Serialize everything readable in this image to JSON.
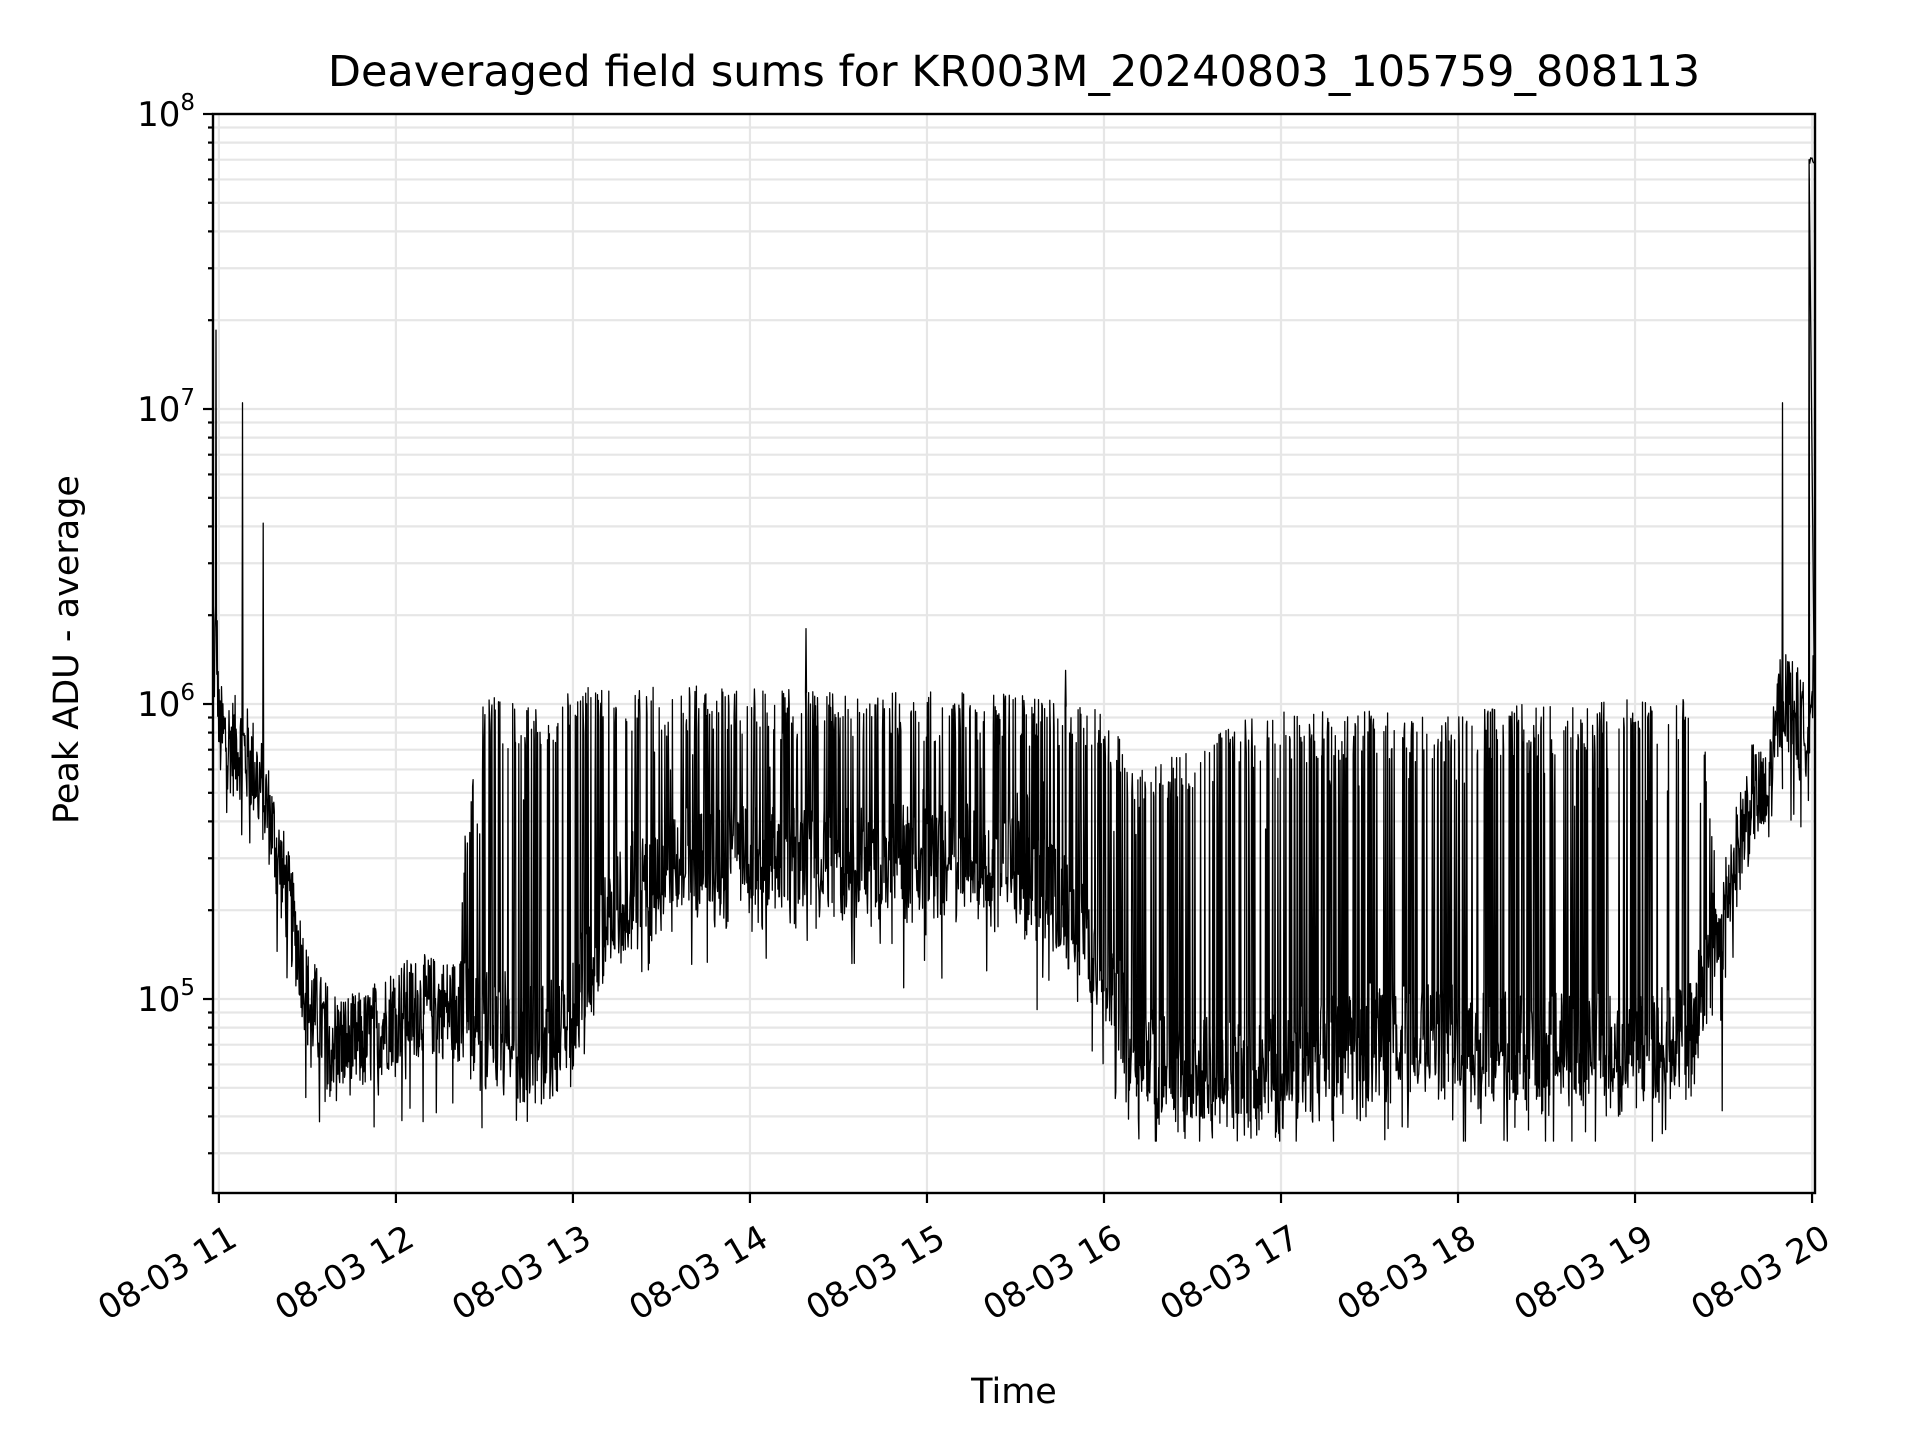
{
  "chart_data": {
    "type": "line",
    "title": "Deaveraged field sums for KR003M_20240803_105759_808113",
    "xlabel": "Time",
    "ylabel": "Peak ADU - average",
    "yscale": "log",
    "ylim": [
      22000,
      100000000
    ],
    "xlim": [
      "2024-08-03 10:58",
      "2024-08-03 20:01"
    ],
    "grid": true,
    "line_color": "#000000",
    "x_ticks": [
      {
        "value": "2024-08-03 11:00",
        "label": "08-03 11"
      },
      {
        "value": "2024-08-03 12:00",
        "label": "08-03 12"
      },
      {
        "value": "2024-08-03 13:00",
        "label": "08-03 13"
      },
      {
        "value": "2024-08-03 14:00",
        "label": "08-03 14"
      },
      {
        "value": "2024-08-03 15:00",
        "label": "08-03 15"
      },
      {
        "value": "2024-08-03 16:00",
        "label": "08-03 16"
      },
      {
        "value": "2024-08-03 17:00",
        "label": "08-03 17"
      },
      {
        "value": "2024-08-03 18:00",
        "label": "08-03 18"
      },
      {
        "value": "2024-08-03 19:00",
        "label": "08-03 19"
      },
      {
        "value": "2024-08-03 20:00",
        "label": "08-03 20"
      }
    ],
    "y_ticks": [
      {
        "value": 100000,
        "base": "10",
        "exp": "5"
      },
      {
        "value": 1000000,
        "base": "10",
        "exp": "6"
      },
      {
        "value": 10000000,
        "base": "10",
        "exp": "7"
      },
      {
        "value": 100000000,
        "base": "10",
        "exp": "8"
      }
    ],
    "series": [
      {
        "x": [
          "2024-08-03 10:58",
          "2024-08-03 10:59",
          "2024-08-03 11:00",
          "2024-08-03 11:01",
          "2024-08-03 11:05",
          "2024-08-03 11:08",
          "2024-08-03 11:12",
          "2024-08-03 11:15",
          "2024-08-03 11:20",
          "2024-08-03 11:25",
          "2024-08-03 11:30",
          "2024-08-03 11:35",
          "2024-08-03 11:40",
          "2024-08-03 11:45",
          "2024-08-03 11:50",
          "2024-08-03 12:00",
          "2024-08-03 12:10",
          "2024-08-03 12:20",
          "2024-08-03 12:30",
          "2024-08-03 12:40",
          "2024-08-03 12:50",
          "2024-08-03 13:00",
          "2024-08-03 13:20",
          "2024-08-03 13:40",
          "2024-08-03 14:00",
          "2024-08-03 14:20",
          "2024-08-03 14:40",
          "2024-08-03 15:00",
          "2024-08-03 15:20",
          "2024-08-03 15:40",
          "2024-08-03 16:00",
          "2024-08-03 16:10",
          "2024-08-03 16:20",
          "2024-08-03 16:40",
          "2024-08-03 17:00",
          "2024-08-03 17:20",
          "2024-08-03 17:40",
          "2024-08-03 18:00",
          "2024-08-03 18:20",
          "2024-08-03 18:40",
          "2024-08-03 19:00",
          "2024-08-03 19:10",
          "2024-08-03 19:20",
          "2024-08-03 19:30",
          "2024-08-03 19:35",
          "2024-08-03 19:40",
          "2024-08-03 19:45",
          "2024-08-03 19:50",
          "2024-08-03 19:55",
          "2024-08-03 19:57",
          "2024-08-03 19:58",
          "2024-08-03 19:59",
          "2024-08-03 20:00",
          "2024-08-03 20:01"
        ],
        "base": [
          900000,
          1900000,
          800000,
          780000,
          720000,
          700000,
          600000,
          500000,
          300000,
          180000,
          100000,
          80000,
          72000,
          70000,
          72000,
          90000,
          95000,
          92000,
          90000,
          80000,
          75000,
          90000,
          250000,
          320000,
          300000,
          310000,
          300000,
          320000,
          300000,
          250000,
          120000,
          70000,
          60000,
          58000,
          60000,
          70000,
          85000,
          75000,
          70000,
          70000,
          70000,
          75000,
          85000,
          200000,
          320000,
          500000,
          450000,
          1100000,
          900000,
          800000,
          850000,
          1000000,
          1100000,
          900000
        ],
        "spike_envelope": [
          0,
          0,
          0,
          0,
          0,
          0,
          0,
          0,
          0,
          0,
          0,
          0,
          0,
          0,
          0,
          0,
          0,
          0,
          1000000,
          1000000,
          900000,
          1100000,
          1100000,
          1100000,
          1100000,
          1050000,
          1050000,
          1050000,
          1050000,
          1000000,
          900000,
          600000,
          600000,
          800000,
          900000,
          900000,
          900000,
          900000,
          950000,
          950000,
          1000000,
          1050000,
          1100000,
          0,
          0,
          0,
          0,
          0,
          0,
          0,
          0,
          0,
          0,
          0
        ]
      }
    ],
    "peaks": [
      {
        "x": "2024-08-03 10:59",
        "y": 18500000
      },
      {
        "x": "2024-08-03 11:08",
        "y": 10500000
      },
      {
        "x": "2024-08-03 11:15",
        "y": 4100000
      },
      {
        "x": "2024-08-03 14:19",
        "y": 1800000
      },
      {
        "x": "2024-08-03 15:47",
        "y": 1300000
      },
      {
        "x": "2024-08-03 19:50",
        "y": 10500000
      },
      {
        "x": "2024-08-03 19:59",
        "y": 70000000
      }
    ]
  }
}
